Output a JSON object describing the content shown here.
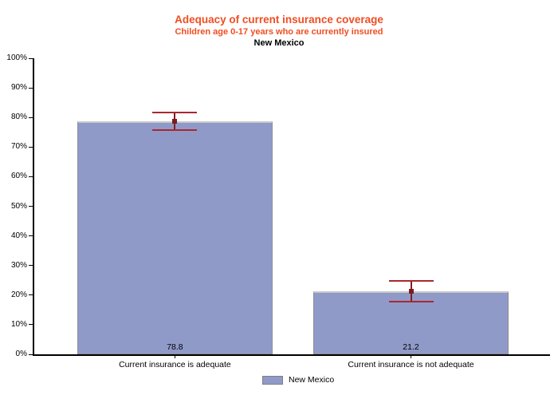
{
  "chart_data": {
    "type": "bar",
    "title": "Adequacy of current insurance coverage",
    "subtitle": "Children age 0-17 years who are currently insured",
    "region": "New Mexico",
    "categories": [
      "Current insurance is adequate",
      "Current insurance is not adequate"
    ],
    "series": [
      {
        "name": "New Mexico",
        "values": [
          78.8,
          21.2
        ],
        "ci_lower": [
          75.8,
          17.9
        ],
        "ci_upper": [
          81.7,
          24.7
        ]
      }
    ],
    "value_labels": [
      "78.8",
      "21.2"
    ],
    "xlabel": "",
    "ylabel": "",
    "ylim": [
      0,
      100
    ],
    "ytick_labels": [
      "0%",
      "10%",
      "20%",
      "30%",
      "40%",
      "50%",
      "60%",
      "70%",
      "80%",
      "90%",
      "100%"
    ],
    "grid": false,
    "legend": {
      "position": "bottom-center",
      "entries": [
        {
          "label": "New Mexico",
          "swatch_color": "#909AC9"
        }
      ]
    },
    "colors": {
      "title": "#EF4E22",
      "subtitle": "#EF4E22",
      "region_title": "#000000",
      "bar_fill": "#909AC9",
      "bar_border": "#8F8F8F",
      "bar_border_top": "#C9C9C9",
      "error_line": "#7E1E22",
      "error_cap": "#A8292E",
      "error_marker": "#7E1B1F",
      "axis": "#000000"
    }
  }
}
